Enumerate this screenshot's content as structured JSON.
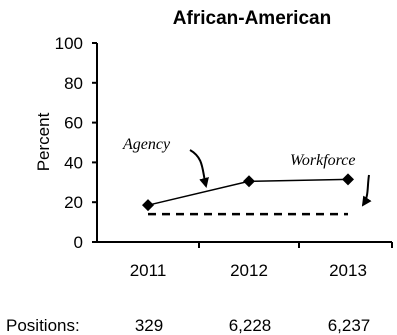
{
  "chart_data": {
    "type": "line",
    "title": "African-American",
    "ylabel": "Percent",
    "xlabel": "",
    "ylim": [
      0,
      100
    ],
    "y_ticks": [
      0,
      20,
      40,
      60,
      80,
      100
    ],
    "categories": [
      "2011",
      "2012",
      "2013"
    ],
    "series": [
      {
        "name": "Agency",
        "values": [
          18.5,
          30.5,
          31.5
        ],
        "style": "solid",
        "marker": "diamond"
      },
      {
        "name": "Workforce",
        "values": [
          14,
          14,
          14
        ],
        "style": "dashed",
        "marker": "none"
      }
    ],
    "positions": {
      "label": "Positions:",
      "values": [
        "329",
        "6,228",
        "6,237"
      ]
    },
    "grid": false,
    "colors": {
      "line": "#000000",
      "text": "#000000"
    }
  }
}
